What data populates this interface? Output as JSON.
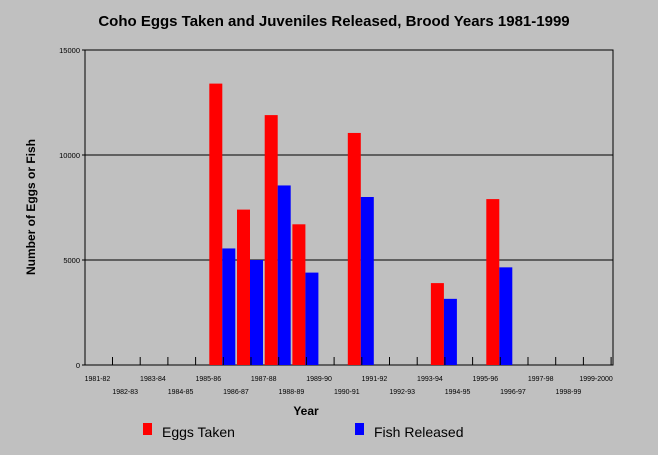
{
  "chart_data": {
    "type": "bar",
    "title": "Coho Eggs Taken and Juveniles Released, Brood Years 1981-1999",
    "xlabel": "Year",
    "ylabel": "Number of Eggs or Fish",
    "ylim": [
      0,
      15000
    ],
    "yticks": [
      "0",
      "5000",
      "10000",
      "15000"
    ],
    "grid": true,
    "legend_position": "bottom",
    "categories": [
      "1981-82",
      "1982-83",
      "1983-84",
      "1984-85",
      "1985-86",
      "1986-87",
      "1987-88",
      "1988-89",
      "1989-90",
      "1990-91",
      "1991-92",
      "1992-93",
      "1993-94",
      "1994-95",
      "1995-96",
      "1996-97",
      "1997-98",
      "1998-99",
      "1999-2000"
    ],
    "series": [
      {
        "name": "Eggs Taken",
        "color": "#ff0000",
        "values": [
          null,
          null,
          null,
          null,
          13400,
          7400,
          11900,
          6700,
          null,
          11050,
          null,
          null,
          3900,
          null,
          7900,
          null,
          null,
          null,
          null
        ]
      },
      {
        "name": "Fish Released",
        "color": "#0000ff",
        "values": [
          null,
          null,
          null,
          null,
          5550,
          5000,
          8550,
          4400,
          null,
          8000,
          null,
          null,
          3150,
          null,
          4650,
          null,
          null,
          null,
          null
        ]
      }
    ]
  }
}
